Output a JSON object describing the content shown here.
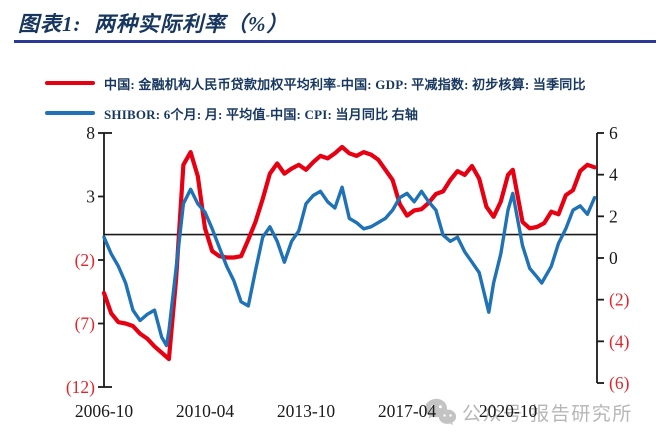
{
  "header": {
    "title": "图表1:  两种实际利率（%）"
  },
  "legend": [
    {
      "label": "中国: 金融机构人民币贷款加权平均利率-中国: GDP: 平减指数: 初步核算: 当季同比",
      "color": "#e60012"
    },
    {
      "label": "SHIBOR: 6个月: 月: 平均值-中国: CPI: 当月同比  右轴",
      "color": "#1f72b5"
    }
  ],
  "watermark": {
    "icon": "wechat-icon",
    "text": "公众号 报告研究所"
  },
  "colors": {
    "title": "#17375E",
    "underline": "#2b3a94",
    "axis": "#1a1a1a",
    "negative_tick_label": "#e0262c",
    "red_line": "#e60012",
    "blue_line": "#1f72b5",
    "watermark_gray": "#b6b6b6"
  },
  "chart_data": {
    "type": "line",
    "title": "两种实际利率（%）",
    "grid": false,
    "legend_position": "top-left",
    "x_ticks": [
      {
        "date": "2006-10",
        "label": "2006-10"
      },
      {
        "date": "2010-04",
        "label": "2010-04"
      },
      {
        "date": "2013-10",
        "label": "2013-10"
      },
      {
        "date": "2017-04",
        "label": "2017-04"
      },
      {
        "date": "2020-10",
        "label": "2020-10"
      }
    ],
    "left_axis": {
      "min": -12,
      "max": 8,
      "ticks": [
        {
          "value": 8,
          "label": "8"
        },
        {
          "value": 3,
          "label": "3"
        },
        {
          "value": -2,
          "label": "(2)"
        },
        {
          "value": -7,
          "label": "(7)"
        },
        {
          "value": -12,
          "label": "(12)"
        }
      ]
    },
    "right_axis": {
      "min": -6,
      "max": 6,
      "ticks": [
        {
          "value": 6,
          "label": "6"
        },
        {
          "value": 4,
          "label": "4"
        },
        {
          "value": 2,
          "label": "2"
        },
        {
          "value": 0,
          "label": "0"
        },
        {
          "value": -2,
          "label": "(2)"
        },
        {
          "value": -4,
          "label": "(4)"
        },
        {
          "value": -6,
          "label": "(6)"
        }
      ]
    },
    "reference_line": {
      "axis": "left",
      "value": 0
    },
    "series": [
      {
        "name": "中国: 金融机构人民币贷款加权平均利率-中国: GDP: 平减指数: 初步核算: 当季同比",
        "axis": "left",
        "color": "#e60012",
        "width": 4.2,
        "points": [
          [
            "2006-10",
            -4.6
          ],
          [
            "2007-01",
            -6.2
          ],
          [
            "2007-04",
            -6.9
          ],
          [
            "2007-07",
            -7.0
          ],
          [
            "2007-10",
            -7.2
          ],
          [
            "2008-01",
            -7.8
          ],
          [
            "2008-04",
            -8.2
          ],
          [
            "2008-07",
            -8.8
          ],
          [
            "2008-10",
            -9.3
          ],
          [
            "2009-01",
            -9.8
          ],
          [
            "2009-04",
            -3.5
          ],
          [
            "2009-07",
            5.5
          ],
          [
            "2009-10",
            6.5
          ],
          [
            "2010-01",
            4.6
          ],
          [
            "2010-04",
            0.5
          ],
          [
            "2010-07",
            -1.3
          ],
          [
            "2010-10",
            -1.7
          ],
          [
            "2011-01",
            -1.8
          ],
          [
            "2011-04",
            -1.8
          ],
          [
            "2011-07",
            -1.7
          ],
          [
            "2011-10",
            -0.4
          ],
          [
            "2012-01",
            1.0
          ],
          [
            "2012-04",
            2.8
          ],
          [
            "2012-07",
            4.8
          ],
          [
            "2012-10",
            5.6
          ],
          [
            "2013-01",
            4.8
          ],
          [
            "2013-04",
            5.2
          ],
          [
            "2013-07",
            5.5
          ],
          [
            "2013-10",
            5.1
          ],
          [
            "2014-01",
            5.7
          ],
          [
            "2014-04",
            6.2
          ],
          [
            "2014-07",
            6.0
          ],
          [
            "2014-10",
            6.4
          ],
          [
            "2015-01",
            6.9
          ],
          [
            "2015-04",
            6.4
          ],
          [
            "2015-07",
            6.2
          ],
          [
            "2015-10",
            6.5
          ],
          [
            "2016-01",
            6.3
          ],
          [
            "2016-04",
            5.9
          ],
          [
            "2016-07",
            5.1
          ],
          [
            "2016-10",
            4.3
          ],
          [
            "2017-01",
            2.4
          ],
          [
            "2017-04",
            1.5
          ],
          [
            "2017-07",
            1.9
          ],
          [
            "2017-10",
            2.0
          ],
          [
            "2018-01",
            2.5
          ],
          [
            "2018-04",
            3.2
          ],
          [
            "2018-07",
            3.4
          ],
          [
            "2018-10",
            4.3
          ],
          [
            "2019-01",
            5.0
          ],
          [
            "2019-04",
            4.7
          ],
          [
            "2019-07",
            5.4
          ],
          [
            "2019-10",
            4.4
          ],
          [
            "2020-01",
            2.2
          ],
          [
            "2020-04",
            1.4
          ],
          [
            "2020-07",
            2.6
          ],
          [
            "2020-10",
            4.7
          ],
          [
            "2020-12",
            5.1
          ],
          [
            "2021-04",
            1.0
          ],
          [
            "2021-07",
            0.5
          ],
          [
            "2021-10",
            0.6
          ],
          [
            "2022-01",
            0.9
          ],
          [
            "2022-04",
            1.8
          ],
          [
            "2022-07",
            1.6
          ],
          [
            "2022-10",
            3.1
          ],
          [
            "2023-01",
            3.5
          ],
          [
            "2023-04",
            5.0
          ],
          [
            "2023-07",
            5.5
          ],
          [
            "2023-10",
            5.3
          ]
        ]
      },
      {
        "name": "SHIBOR: 6个月: 月: 平均值-中国: CPI: 当月同比",
        "axis": "right",
        "color": "#1f72b5",
        "width": 3.4,
        "points": [
          [
            "2006-10",
            1.0
          ],
          [
            "2007-01",
            0.2
          ],
          [
            "2007-04",
            -0.4
          ],
          [
            "2007-07",
            -1.2
          ],
          [
            "2007-10",
            -2.5
          ],
          [
            "2008-01",
            -3.0
          ],
          [
            "2008-04",
            -2.7
          ],
          [
            "2008-07",
            -2.5
          ],
          [
            "2008-10",
            -3.8
          ],
          [
            "2008-12",
            -4.2
          ],
          [
            "2009-01",
            -3.5
          ],
          [
            "2009-04",
            -0.5
          ],
          [
            "2009-07",
            2.6
          ],
          [
            "2009-10",
            3.3
          ],
          [
            "2010-01",
            2.6
          ],
          [
            "2010-04",
            2.2
          ],
          [
            "2010-07",
            1.4
          ],
          [
            "2010-10",
            0.5
          ],
          [
            "2011-01",
            -0.4
          ],
          [
            "2011-04",
            -1.1
          ],
          [
            "2011-07",
            -2.1
          ],
          [
            "2011-10",
            -2.3
          ],
          [
            "2012-01",
            -0.6
          ],
          [
            "2012-04",
            1.0
          ],
          [
            "2012-07",
            1.5
          ],
          [
            "2012-10",
            0.8
          ],
          [
            "2013-01",
            -0.2
          ],
          [
            "2013-04",
            0.8
          ],
          [
            "2013-07",
            1.3
          ],
          [
            "2013-10",
            2.6
          ],
          [
            "2014-01",
            3.0
          ],
          [
            "2014-04",
            3.2
          ],
          [
            "2014-07",
            2.7
          ],
          [
            "2014-10",
            2.4
          ],
          [
            "2015-01",
            3.4
          ],
          [
            "2015-04",
            1.9
          ],
          [
            "2015-07",
            1.7
          ],
          [
            "2015-10",
            1.4
          ],
          [
            "2016-01",
            1.5
          ],
          [
            "2016-04",
            1.7
          ],
          [
            "2016-07",
            1.9
          ],
          [
            "2016-10",
            2.3
          ],
          [
            "2017-01",
            2.9
          ],
          [
            "2017-04",
            3.1
          ],
          [
            "2017-07",
            2.7
          ],
          [
            "2017-10",
            3.2
          ],
          [
            "2018-01",
            2.7
          ],
          [
            "2018-04",
            2.3
          ],
          [
            "2018-07",
            1.1
          ],
          [
            "2018-10",
            0.8
          ],
          [
            "2019-01",
            1.0
          ],
          [
            "2019-04",
            0.3
          ],
          [
            "2019-07",
            -0.2
          ],
          [
            "2019-10",
            -0.7
          ],
          [
            "2020-02",
            -2.6
          ],
          [
            "2020-04",
            -1.2
          ],
          [
            "2020-07",
            0.2
          ],
          [
            "2020-10",
            2.3
          ],
          [
            "2020-12",
            3.1
          ],
          [
            "2021-04",
            0.6
          ],
          [
            "2021-07",
            -0.5
          ],
          [
            "2021-10",
            -0.9
          ],
          [
            "2021-12",
            -1.2
          ],
          [
            "2022-04",
            -0.4
          ],
          [
            "2022-07",
            0.7
          ],
          [
            "2022-10",
            1.4
          ],
          [
            "2023-01",
            2.3
          ],
          [
            "2023-04",
            2.5
          ],
          [
            "2023-07",
            2.1
          ],
          [
            "2023-10",
            2.9
          ]
        ]
      }
    ]
  }
}
